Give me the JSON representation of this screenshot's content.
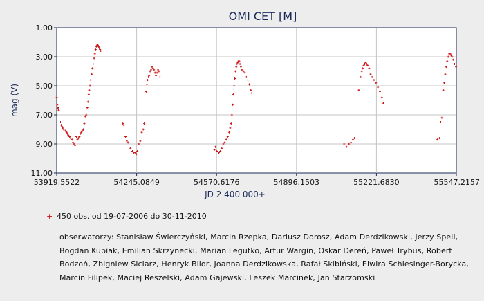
{
  "chart_data": {
    "type": "scatter",
    "title": "OMI CET [M]",
    "xlabel": "JD 2 400 000+",
    "ylabel": "mag (V)",
    "xlim": [
      53919.5522,
      55547.2157
    ],
    "ylim": [
      11.0,
      1.0
    ],
    "y_inverted": true,
    "xticks": [
      "53919.5522",
      "54245.0849",
      "54570.6176",
      "54896.1503",
      "55221.6830",
      "55547.2157"
    ],
    "yticks": [
      "1.00",
      "3.00",
      "5.00",
      "7.00",
      "9.00",
      "11.00"
    ],
    "grid": true,
    "marker_color": "#cc1111",
    "legend_text": "450 obs. od 19-07-2006 do 30-11-2010",
    "observers_text": "obserwatorzy: Stanisław Świerczyński, Marcin Rzepka, Dariusz Dorosz, Adam Derdzikowski, Jerzy Speil, Bogdan Kubiak, Emilian Skrzynecki, Marian Legutko, Artur Wargin, Oskar Dereń, Paweł Trybus, Robert Bodzoń, Zbigniew Siciarz, Henryk Bilor, Joanna Derdzikowska, Rafał Skibiński, Elwira Schlesinger-Borycka, Marcin Filipek, Maciej Reszelski, Adam Gajewski, Leszek Marcinek, Jan Starzomski",
    "series": [
      {
        "points": [
          [
            53920,
            5.8
          ],
          [
            53922,
            6.3
          ],
          [
            53924,
            6.5
          ],
          [
            53926,
            6.6
          ],
          [
            53928,
            6.7
          ],
          [
            53935,
            7.5
          ],
          [
            53938,
            7.7
          ],
          [
            53941,
            7.8
          ],
          [
            53944,
            7.9
          ],
          [
            53948,
            8.0
          ],
          [
            53955,
            8.1
          ],
          [
            53960,
            8.2
          ],
          [
            53963,
            8.3
          ],
          [
            53967,
            8.4
          ],
          [
            53972,
            8.5
          ],
          [
            53976,
            8.6
          ],
          [
            53982,
            8.7
          ],
          [
            53986,
            8.9
          ],
          [
            53990,
            9.0
          ],
          [
            53994,
            9.1
          ],
          [
            54000,
            8.5
          ],
          [
            54004,
            8.7
          ],
          [
            54008,
            8.6
          ],
          [
            54012,
            8.5
          ],
          [
            54016,
            8.3
          ],
          [
            54020,
            8.2
          ],
          [
            54024,
            8.1
          ],
          [
            54028,
            8.0
          ],
          [
            54032,
            7.6
          ],
          [
            54036,
            7.1
          ],
          [
            54040,
            7.0
          ],
          [
            54044,
            6.5
          ],
          [
            54047,
            6.1
          ],
          [
            54050,
            5.6
          ],
          [
            54052,
            5.3
          ],
          [
            54055,
            5.0
          ],
          [
            54058,
            4.6
          ],
          [
            54062,
            4.2
          ],
          [
            54065,
            3.8
          ],
          [
            54068,
            3.5
          ],
          [
            54072,
            3.1
          ],
          [
            54075,
            2.8
          ],
          [
            54078,
            2.5
          ],
          [
            54081,
            2.3
          ],
          [
            54084,
            2.2
          ],
          [
            54087,
            2.2
          ],
          [
            54090,
            2.3
          ],
          [
            54093,
            2.4
          ],
          [
            54096,
            2.5
          ],
          [
            54099,
            2.6
          ],
          [
            54189,
            7.6
          ],
          [
            54193,
            7.7
          ],
          [
            54200,
            8.5
          ],
          [
            54205,
            8.8
          ],
          [
            54210,
            8.9
          ],
          [
            54220,
            9.3
          ],
          [
            54228,
            9.5
          ],
          [
            54234,
            9.6
          ],
          [
            54240,
            9.6
          ],
          [
            54244,
            9.7
          ],
          [
            54248,
            9.5
          ],
          [
            54254,
            9.0
          ],
          [
            54260,
            8.8
          ],
          [
            54266,
            8.2
          ],
          [
            54272,
            8.0
          ],
          [
            54276,
            7.6
          ],
          [
            54284,
            5.4
          ],
          [
            54287,
            4.9
          ],
          [
            54290,
            4.6
          ],
          [
            54293,
            4.4
          ],
          [
            54296,
            4.3
          ],
          [
            54300,
            4.0
          ],
          [
            54304,
            3.9
          ],
          [
            54308,
            3.7
          ],
          [
            54312,
            3.8
          ],
          [
            54316,
            3.9
          ],
          [
            54320,
            4.1
          ],
          [
            54324,
            4.3
          ],
          [
            54328,
            4.1
          ],
          [
            54332,
            3.9
          ],
          [
            54336,
            4.0
          ],
          [
            54340,
            4.4
          ],
          [
            54562,
            9.4
          ],
          [
            54566,
            9.2
          ],
          [
            54572,
            9.5
          ],
          [
            54580,
            9.6
          ],
          [
            54586,
            9.5
          ],
          [
            54592,
            9.3
          ],
          [
            54598,
            9.0
          ],
          [
            54604,
            8.9
          ],
          [
            54610,
            8.7
          ],
          [
            54616,
            8.5
          ],
          [
            54622,
            8.2
          ],
          [
            54626,
            7.9
          ],
          [
            54630,
            7.6
          ],
          [
            54633,
            7.0
          ],
          [
            54636,
            6.3
          ],
          [
            54639,
            5.6
          ],
          [
            54642,
            5.0
          ],
          [
            54645,
            4.5
          ],
          [
            54648,
            4.0
          ],
          [
            54651,
            3.7
          ],
          [
            54654,
            3.5
          ],
          [
            54657,
            3.4
          ],
          [
            54660,
            3.3
          ],
          [
            54663,
            3.3
          ],
          [
            54666,
            3.5
          ],
          [
            54670,
            3.7
          ],
          [
            54674,
            3.9
          ],
          [
            54680,
            4.0
          ],
          [
            54686,
            4.1
          ],
          [
            54692,
            4.4
          ],
          [
            54698,
            4.6
          ],
          [
            54704,
            4.9
          ],
          [
            54710,
            5.3
          ],
          [
            54714,
            5.5
          ],
          [
            55090,
            9.0
          ],
          [
            55100,
            9.2
          ],
          [
            55110,
            9.0
          ],
          [
            55118,
            8.9
          ],
          [
            55126,
            8.7
          ],
          [
            55132,
            8.6
          ],
          [
            55150,
            5.3
          ],
          [
            55158,
            4.4
          ],
          [
            55162,
            4.0
          ],
          [
            55166,
            3.8
          ],
          [
            55170,
            3.6
          ],
          [
            55174,
            3.5
          ],
          [
            55178,
            3.4
          ],
          [
            55182,
            3.5
          ],
          [
            55186,
            3.6
          ],
          [
            55192,
            3.8
          ],
          [
            55198,
            4.2
          ],
          [
            55204,
            4.4
          ],
          [
            55212,
            4.6
          ],
          [
            55220,
            4.8
          ],
          [
            55228,
            5.1
          ],
          [
            55236,
            5.4
          ],
          [
            55244,
            5.8
          ],
          [
            55250,
            6.2
          ],
          [
            55470,
            8.7
          ],
          [
            55478,
            8.6
          ],
          [
            55484,
            7.5
          ],
          [
            55488,
            7.2
          ],
          [
            55494,
            5.3
          ],
          [
            55498,
            4.8
          ],
          [
            55502,
            4.2
          ],
          [
            55506,
            3.7
          ],
          [
            55510,
            3.3
          ],
          [
            55514,
            3.0
          ],
          [
            55518,
            2.8
          ],
          [
            55522,
            2.8
          ],
          [
            55526,
            2.9
          ],
          [
            55530,
            3.0
          ],
          [
            55534,
            3.2
          ],
          [
            55540,
            3.5
          ],
          [
            55546,
            3.7
          ]
        ]
      }
    ]
  }
}
